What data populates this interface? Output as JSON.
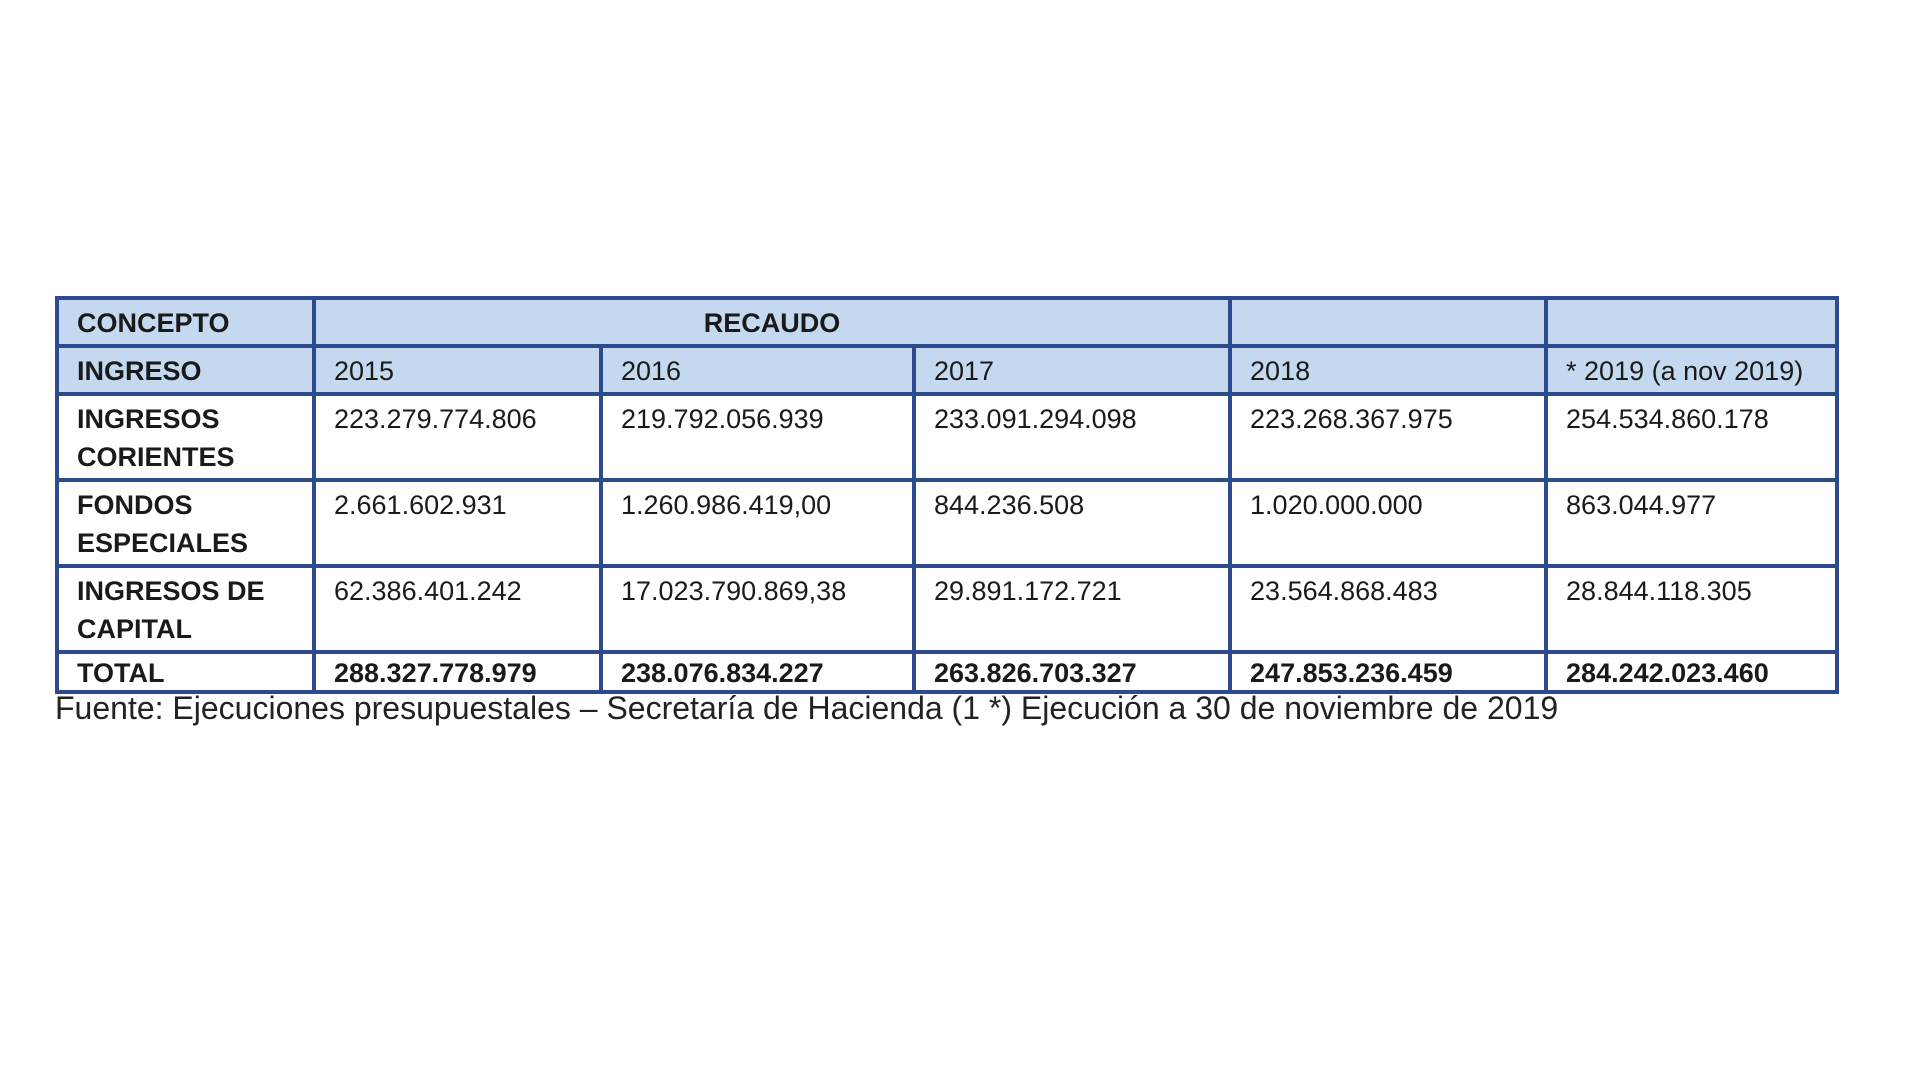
{
  "table": {
    "header_row1": {
      "concepto": "CONCEPTO",
      "recaudo": "RECAUDO",
      "blank1": "",
      "blank2": ""
    },
    "header_row2": {
      "ingreso": "INGRESO",
      "years": [
        "2015",
        "2016",
        "2017",
        "2018",
        "* 2019 (a nov 2019)"
      ]
    },
    "rows": [
      {
        "label_line1": "INGRESOS",
        "label_line2": "CORIENTES",
        "values": [
          "223.279.774.806",
          "219.792.056.939",
          "233.091.294.098",
          "223.268.367.975",
          "254.534.860.178"
        ]
      },
      {
        "label_line1": "FONDOS",
        "label_line2": "ESPECIALES",
        "values": [
          "2.661.602.931",
          "1.260.986.419,00",
          "844.236.508",
          "1.020.000.000",
          "863.044.977"
        ]
      },
      {
        "label_line1": "INGRESOS DE",
        "label_line2": "CAPITAL",
        "values": [
          "62.386.401.242",
          "17.023.790.869,38",
          "29.891.172.721",
          "23.564.868.483",
          "28.844.118.305"
        ]
      }
    ],
    "total": {
      "label": "TOTAL",
      "values": [
        "288.327.778.979",
        "238.076.834.227",
        "263.826.703.327",
        "247.853.236.459",
        "284.242.023.460"
      ]
    }
  },
  "source_note": "Fuente: Ejecuciones presupuestales – Secretaría de Hacienda (1 *) Ejecución a 30 de noviembre de 2019",
  "colors": {
    "border": "#2e4a8f",
    "header_fill": "#c4d9f0"
  }
}
